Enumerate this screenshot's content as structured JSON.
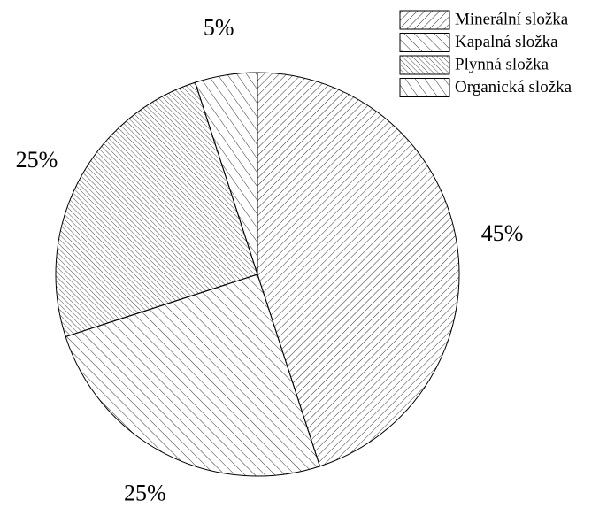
{
  "chart_data": {
    "type": "pie",
    "categories": [
      "Minerální složka",
      "Kapalná složka",
      "Plynná složka",
      "Organická složka"
    ],
    "values": [
      45,
      25,
      25,
      5
    ],
    "value_labels": [
      "45%",
      "25%",
      "25%",
      "5%"
    ],
    "legend": "top-right"
  }
}
